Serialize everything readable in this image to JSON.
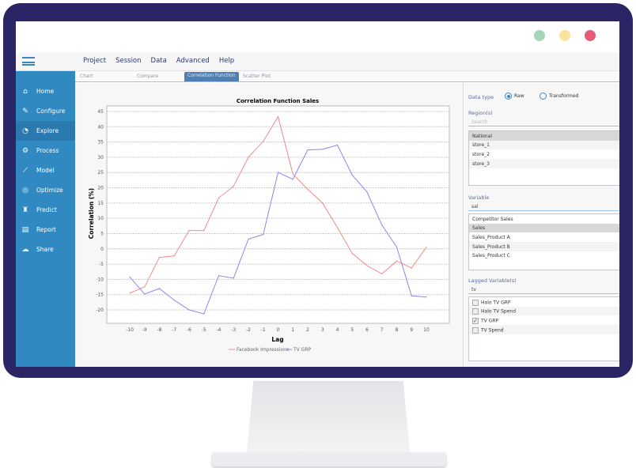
{
  "window": {
    "dot_colors": [
      "#a6d6b8",
      "#fde3a0",
      "#e45c7a"
    ]
  },
  "menu": [
    "Project",
    "Session",
    "Data",
    "Advanced",
    "Help"
  ],
  "sidebar": {
    "active": "Explore",
    "items": [
      {
        "label": "Home",
        "icon": "home-icon"
      },
      {
        "label": "Configure",
        "icon": "wrench-icon"
      },
      {
        "label": "Explore",
        "icon": "dashboard-icon"
      },
      {
        "label": "Process",
        "icon": "gears-icon"
      },
      {
        "label": "Model",
        "icon": "line-chart-icon"
      },
      {
        "label": "Optimize",
        "icon": "target-icon"
      },
      {
        "label": "Predict",
        "icon": "binoculars-icon"
      },
      {
        "label": "Report",
        "icon": "report-icon"
      },
      {
        "label": "Share",
        "icon": "cloud-upload-icon"
      }
    ]
  },
  "tabs": [
    {
      "label": "Chart"
    },
    {
      "label": "Compare"
    },
    {
      "label": "Correlation Function",
      "active": true
    },
    {
      "label": "Scatter Plot"
    }
  ],
  "panel": {
    "data_type_label": "Data type",
    "data_type_options": [
      {
        "label": "Raw",
        "selected": true
      },
      {
        "label": "Transformed",
        "selected": false
      }
    ],
    "regions_label": "Region(s)",
    "regions_search_placeholder": "Search",
    "regions": [
      {
        "label": "National",
        "selected": true
      },
      {
        "label": "store_1"
      },
      {
        "label": "store_2"
      },
      {
        "label": "store_3"
      }
    ],
    "variable_label": "Variable",
    "variable_search": "sal",
    "variables": [
      {
        "label": "Competitor Sales"
      },
      {
        "label": "Sales",
        "selected": true
      },
      {
        "label": "Sales_Product A"
      },
      {
        "label": "Sales_Product B"
      },
      {
        "label": "Sales_Product C"
      }
    ],
    "lagged_label": "Lagged Variable(s)",
    "lagged_search": "tv",
    "lagged": [
      {
        "label": "Halo TV GRP",
        "checked": false
      },
      {
        "label": "Halo TV Spend",
        "checked": false
      },
      {
        "label": "TV GRP",
        "checked": true
      },
      {
        "label": "TV Spend",
        "checked": false
      }
    ]
  },
  "chart_data": {
    "type": "line",
    "title": "Correlation Function  Sales",
    "xlabel": "Lag",
    "ylabel": "Correlation (%)",
    "x": [
      -10,
      -9,
      -8,
      -7,
      -6,
      -5,
      -4,
      -3,
      -2,
      -1,
      0,
      1,
      2,
      3,
      4,
      5,
      6,
      7,
      8,
      9,
      10
    ],
    "ylim": [
      -25,
      46
    ],
    "yticks": [
      -20,
      -15,
      -10,
      -5,
      0,
      5,
      10,
      15,
      20,
      25,
      30,
      35,
      40,
      45
    ],
    "grid": true,
    "legend": "bottom",
    "series": [
      {
        "name": "Facebook Impressions",
        "color": "#f08a8a",
        "values": [
          -14.5,
          -12.5,
          -2.8,
          -2.3,
          6,
          6,
          16.7,
          20.5,
          30,
          35.2,
          43.3,
          24.5,
          19.5,
          15,
          7,
          -1.5,
          -5.5,
          -8.2,
          -4,
          -6.3,
          0.5
        ]
      },
      {
        "name": "TV GRP",
        "color": "#8a88e8",
        "values": [
          -9.2,
          -14.8,
          -13,
          -16.8,
          -20,
          -21.3,
          -8.8,
          -9.6,
          3.2,
          4.7,
          25,
          22.8,
          32.4,
          32.6,
          34,
          24.2,
          18.6,
          7.8,
          0.6,
          -15.4,
          -15.8
        ]
      }
    ]
  }
}
